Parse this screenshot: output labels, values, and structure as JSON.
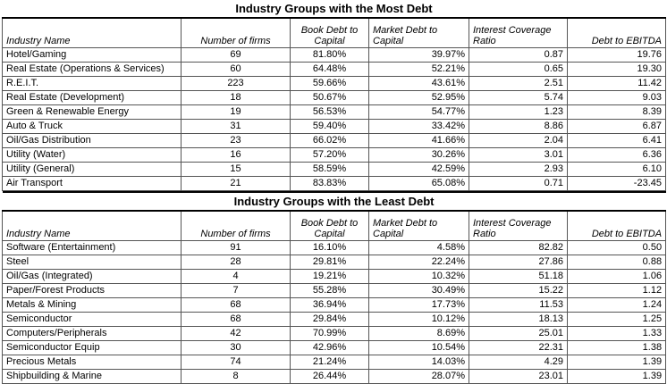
{
  "sections": [
    {
      "title": "Industry Groups with the Most Debt",
      "headers": [
        [
          "Industry Name"
        ],
        [
          "Number of firms"
        ],
        [
          "Book Debt to",
          "Capital"
        ],
        [
          "Market Debt to",
          "Capital"
        ],
        [
          "Interest Coverage",
          "Ratio"
        ],
        [
          "Debt to EBITDA"
        ]
      ],
      "rows": [
        [
          "Hotel/Gaming",
          "69",
          "81.80%",
          "39.97%",
          "0.87",
          "19.76"
        ],
        [
          "Real Estate (Operations & Services)",
          "60",
          "64.48%",
          "52.21%",
          "0.65",
          "19.30"
        ],
        [
          "R.E.I.T.",
          "223",
          "59.66%",
          "43.61%",
          "2.51",
          "11.42"
        ],
        [
          "Real Estate (Development)",
          "18",
          "50.67%",
          "52.95%",
          "5.74",
          "9.03"
        ],
        [
          "Green & Renewable Energy",
          "19",
          "56.53%",
          "54.77%",
          "1.23",
          "8.39"
        ],
        [
          "Auto & Truck",
          "31",
          "59.40%",
          "33.42%",
          "8.86",
          "6.87"
        ],
        [
          "Oil/Gas Distribution",
          "23",
          "66.02%",
          "41.66%",
          "2.04",
          "6.41"
        ],
        [
          "Utility (Water)",
          "16",
          "57.20%",
          "30.26%",
          "3.01",
          "6.36"
        ],
        [
          "Utility (General)",
          "15",
          "58.59%",
          "42.59%",
          "2.93",
          "6.10"
        ],
        [
          "Air Transport",
          "21",
          "83.83%",
          "65.08%",
          "0.71",
          "-23.45"
        ]
      ]
    },
    {
      "title": "Industry Groups with the Least Debt",
      "headers": [
        [
          "Industry Name"
        ],
        [
          "Number of firms"
        ],
        [
          "Book Debt to",
          "Capital"
        ],
        [
          "Market Debt to",
          "Capital"
        ],
        [
          "Interest Coverage",
          "Ratio"
        ],
        [
          "Debt to EBITDA"
        ]
      ],
      "rows": [
        [
          "Software (Entertainment)",
          "91",
          "16.10%",
          "4.58%",
          "82.82",
          "0.50"
        ],
        [
          "Steel",
          "28",
          "29.81%",
          "22.24%",
          "27.86",
          "0.88"
        ],
        [
          "Oil/Gas (Integrated)",
          "4",
          "19.21%",
          "10.32%",
          "51.18",
          "1.06"
        ],
        [
          "Paper/Forest Products",
          "7",
          "55.28%",
          "30.49%",
          "15.22",
          "1.12"
        ],
        [
          "Metals & Mining",
          "68",
          "36.94%",
          "17.73%",
          "11.53",
          "1.24"
        ],
        [
          "Semiconductor",
          "68",
          "29.84%",
          "10.12%",
          "18.13",
          "1.25"
        ],
        [
          "Computers/Peripherals",
          "42",
          "70.99%",
          "8.69%",
          "25.01",
          "1.33"
        ],
        [
          "Semiconductor Equip",
          "30",
          "42.96%",
          "10.54%",
          "22.31",
          "1.38"
        ],
        [
          "Precious Metals",
          "74",
          "21.24%",
          "14.03%",
          "4.29",
          "1.39"
        ],
        [
          "Shipbuilding & Marine",
          "8",
          "26.44%",
          "28.07%",
          "23.01",
          "1.39"
        ]
      ]
    }
  ]
}
